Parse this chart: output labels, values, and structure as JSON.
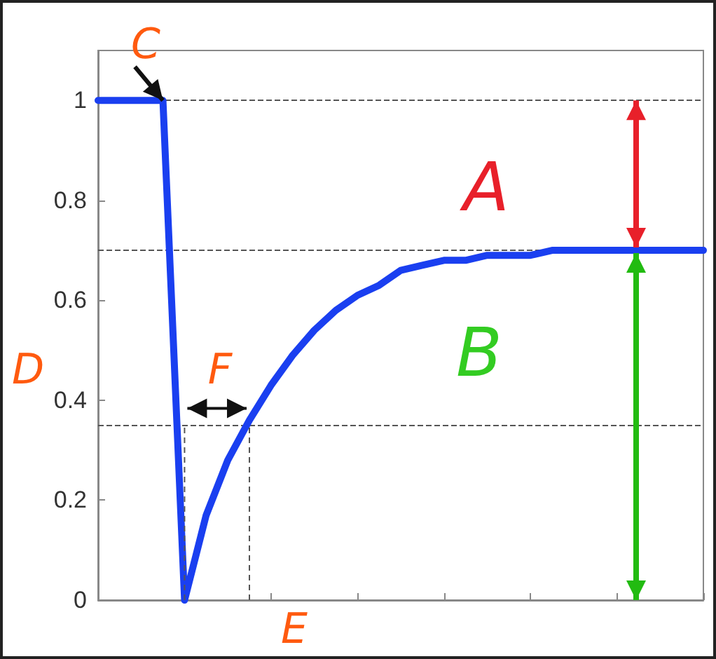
{
  "chart_data": {
    "type": "line",
    "categories": [
      null,
      null,
      null,
      null,
      null,
      null,
      null,
      null,
      null,
      null,
      null,
      null,
      null,
      null,
      null,
      null,
      null,
      null,
      null,
      null,
      null,
      null,
      null,
      null,
      null,
      null,
      null,
      null,
      null
    ],
    "series": [
      {
        "color": "#1a3ff0",
        "values": [
          1,
          1,
          1,
          1,
          0,
          0.17,
          0.28,
          0.36,
          0.43,
          0.49,
          0.54,
          0.58,
          0.61,
          0.63,
          0.66,
          0.67,
          0.68,
          0.68,
          0.69,
          0.69,
          0.69,
          0.7,
          0.7,
          0.7,
          0.7,
          0.7,
          0.7,
          0.7,
          0.7
        ]
      }
    ],
    "ylim": [
      0,
      1.1
    ],
    "yticks": [
      0,
      0.2,
      0.4,
      0.6,
      0.8,
      1
    ],
    "tick_labels": "y",
    "grid": false,
    "marker": "none",
    "line_style": "solid",
    "ref_lines": [
      {
        "axis": "y",
        "value": 1,
        "color": "#555555",
        "line_style": "dashed"
      },
      {
        "axis": "y",
        "value": 0.7,
        "color": "#555555",
        "line_style": "dashed"
      },
      {
        "axis": "y",
        "value": 0.35,
        "color": "#555555",
        "line_style": "dashed"
      }
    ],
    "annotations": [
      "A",
      "B",
      "C",
      "F",
      "D",
      "E"
    ]
  }
}
